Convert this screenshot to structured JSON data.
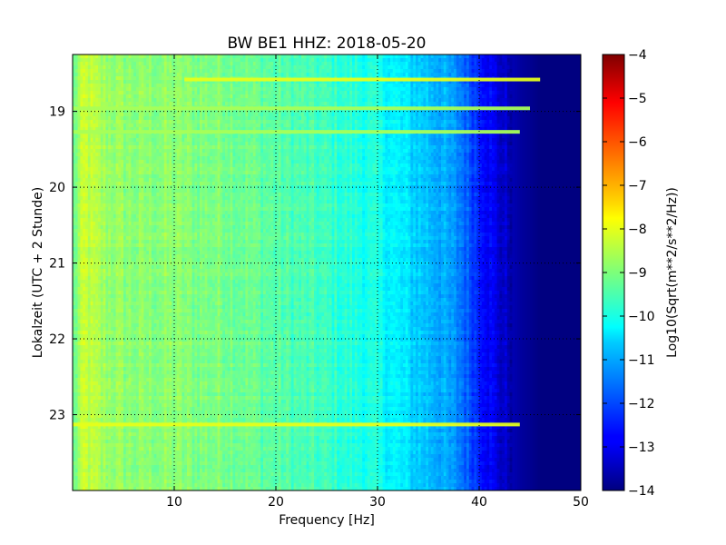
{
  "chart_data": {
    "type": "heatmap",
    "title": "BW BE1 HHZ: 2018-05-20",
    "xlabel": "Frequency [Hz]",
    "ylabel": "Lokalzeit (UTC + 2 Stunde)",
    "xlim": [
      0,
      50
    ],
    "ylim": [
      18.25,
      24.0
    ],
    "y_inverted": true,
    "x_ticks": [
      10,
      20,
      30,
      40,
      50
    ],
    "y_ticks": [
      19,
      20,
      21,
      22,
      23
    ],
    "grid": true,
    "colormap": "jet",
    "colorbar": {
      "label": "Log10(Sqrt(m**2/s**2/Hz))",
      "range": [
        -14,
        -4
      ],
      "ticks": [
        -4,
        -5,
        -6,
        -7,
        -8,
        -9,
        -10,
        -11,
        -12,
        -13,
        -14
      ]
    },
    "profile": {
      "frequency_hz": [
        0,
        1,
        3,
        6,
        10,
        12,
        15,
        20,
        25,
        30,
        33,
        36,
        38,
        40,
        42,
        44,
        46,
        48,
        50
      ],
      "log10_amplitude": [
        -9.2,
        -8.3,
        -8.7,
        -8.9,
        -8.9,
        -9.0,
        -9.0,
        -9.4,
        -9.7,
        -10.1,
        -10.6,
        -11.0,
        -11.5,
        -12.4,
        -13.2,
        -13.7,
        -14.0,
        -14.0,
        -14.0
      ]
    },
    "bright_bands": [
      {
        "time": 18.58,
        "from_hz": 11,
        "to_hz": 46,
        "log10_amplitude": -8.0
      },
      {
        "time": 18.96,
        "from_hz": 0,
        "to_hz": 45,
        "log10_amplitude": -8.6
      },
      {
        "time": 19.27,
        "from_hz": 0,
        "to_hz": 44,
        "log10_amplitude": -8.6
      },
      {
        "time": 23.13,
        "from_hz": 0,
        "to_hz": 44,
        "log10_amplitude": -8.0
      }
    ]
  }
}
